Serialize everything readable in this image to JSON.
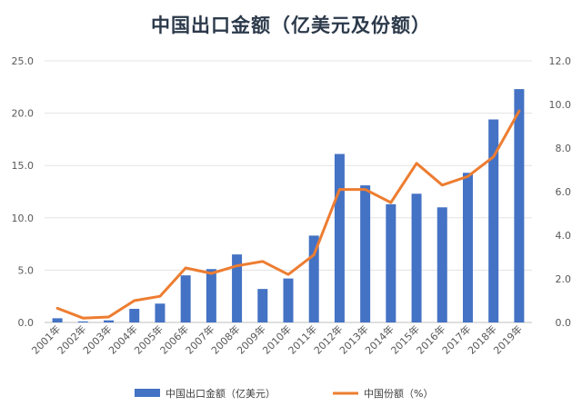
{
  "chart_data": {
    "type": "bar+line",
    "title": "中国出口金额（亿美元及份额）",
    "categories": [
      "2001年",
      "2002年",
      "2003年",
      "2004年",
      "2005年",
      "2006年",
      "2007年",
      "2008年",
      "2009年",
      "2010年",
      "2011年",
      "2012年",
      "2013年",
      "2014年",
      "2015年",
      "2016年",
      "2017年",
      "2018年",
      "2019年"
    ],
    "series": [
      {
        "name": "中国出口金额（亿美元）",
        "type": "bar",
        "axis": "left",
        "color": "#4472C4",
        "values": [
          0.4,
          0.1,
          0.2,
          1.3,
          1.8,
          4.5,
          5.1,
          6.5,
          3.2,
          4.2,
          8.3,
          16.1,
          13.1,
          11.3,
          12.3,
          11.0,
          14.3,
          19.4,
          22.3
        ]
      },
      {
        "name": "中国份额（%）",
        "type": "line",
        "axis": "right",
        "color": "#ED7D31",
        "values": [
          0.65,
          0.2,
          0.25,
          1.0,
          1.2,
          2.5,
          2.25,
          2.6,
          2.8,
          2.2,
          3.1,
          6.1,
          6.1,
          5.5,
          7.3,
          6.3,
          6.7,
          7.6,
          9.7
        ]
      }
    ],
    "ylim_left": [
      0,
      25
    ],
    "ylim_right": [
      0,
      12
    ],
    "yticks_left": [
      "0.0",
      "5.0",
      "10.0",
      "15.0",
      "20.0",
      "25.0"
    ],
    "yticks_right": [
      "0.0",
      "2.0",
      "4.0",
      "6.0",
      "8.0",
      "10.0",
      "12.0"
    ],
    "grid": true,
    "legend": "bottom"
  }
}
